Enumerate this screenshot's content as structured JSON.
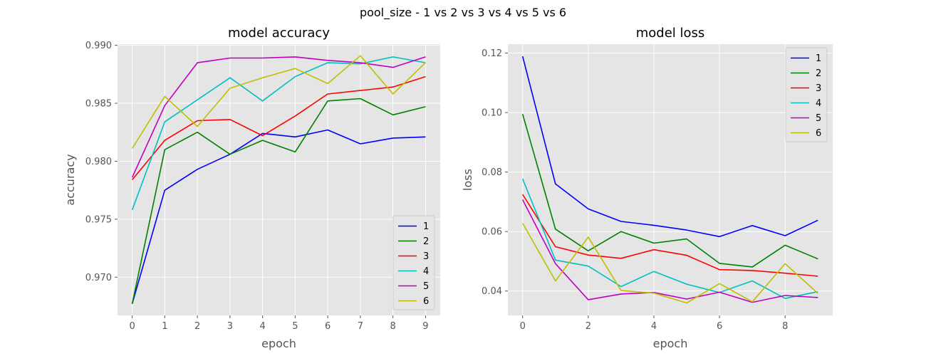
{
  "figure": {
    "suptitle": "pool_size - 1 vs 2 vs 3 vs 4 vs 5 vs 6"
  },
  "chart_data": [
    {
      "type": "line",
      "title": "model accuracy",
      "xlabel": "epoch",
      "ylabel": "accuracy",
      "x": [
        0,
        1,
        2,
        3,
        4,
        5,
        6,
        7,
        8,
        9
      ],
      "xlim": [
        -0.45,
        9.45
      ],
      "ylim": [
        0.9667,
        0.9901
      ],
      "xticks": [
        "0",
        "1",
        "2",
        "3",
        "4",
        "5",
        "6",
        "7",
        "8",
        "9"
      ],
      "yticks": [
        "0.970",
        "0.975",
        "0.980",
        "0.985",
        "0.990"
      ],
      "ytick_values": [
        0.97,
        0.975,
        0.98,
        0.985,
        0.99
      ],
      "grid": true,
      "legend_position": "lower right",
      "series": [
        {
          "name": "1",
          "color": "#0000ff",
          "values": [
            0.9677,
            0.9775,
            0.9793,
            0.9806,
            0.9824,
            0.9821,
            0.9827,
            0.9815,
            0.982,
            0.9821
          ]
        },
        {
          "name": "2",
          "color": "#008000",
          "values": [
            0.9677,
            0.981,
            0.9825,
            0.9806,
            0.9818,
            0.9808,
            0.9852,
            0.9854,
            0.984,
            0.9847
          ]
        },
        {
          "name": "3",
          "color": "#ff0000",
          "values": [
            0.9784,
            0.9818,
            0.9835,
            0.9836,
            0.9822,
            0.9839,
            0.9858,
            0.9861,
            0.9864,
            0.9873
          ]
        },
        {
          "name": "4",
          "color": "#00bfbf",
          "values": [
            0.9758,
            0.9834,
            0.9853,
            0.9872,
            0.9852,
            0.9873,
            0.9885,
            0.9884,
            0.989,
            0.9885
          ]
        },
        {
          "name": "5",
          "color": "#bf00bf",
          "values": [
            0.9786,
            0.9848,
            0.9885,
            0.9889,
            0.9889,
            0.989,
            0.9887,
            0.9885,
            0.9881,
            0.989
          ]
        },
        {
          "name": "6",
          "color": "#bfbf00",
          "values": [
            0.9811,
            0.9856,
            0.983,
            0.9863,
            0.9872,
            0.988,
            0.9867,
            0.9891,
            0.9858,
            0.9885
          ]
        }
      ]
    },
    {
      "type": "line",
      "title": "model loss",
      "xlabel": "epoch",
      "ylabel": "loss",
      "x": [
        0,
        1,
        2,
        3,
        4,
        5,
        6,
        7,
        8,
        9
      ],
      "xlim": [
        -0.45,
        9.45
      ],
      "ylim": [
        0.0318,
        0.123
      ],
      "xticks": [
        "0",
        "2",
        "4",
        "6",
        "8"
      ],
      "xtick_values": [
        0,
        2,
        4,
        6,
        8
      ],
      "yticks": [
        "0.04",
        "0.06",
        "0.08",
        "0.10",
        "0.12"
      ],
      "ytick_values": [
        0.04,
        0.06,
        0.08,
        0.1,
        0.12
      ],
      "grid": true,
      "legend_position": "upper right",
      "series": [
        {
          "name": "1",
          "color": "#0000ff",
          "values": [
            0.1189,
            0.076,
            0.0676,
            0.0634,
            0.0621,
            0.0605,
            0.0583,
            0.062,
            0.0586,
            0.0638
          ]
        },
        {
          "name": "2",
          "color": "#008000",
          "values": [
            0.0995,
            0.0608,
            0.0535,
            0.06,
            0.0561,
            0.0575,
            0.0493,
            0.0481,
            0.0554,
            0.0508
          ]
        },
        {
          "name": "3",
          "color": "#ff0000",
          "values": [
            0.0725,
            0.0549,
            0.0521,
            0.051,
            0.0539,
            0.052,
            0.0472,
            0.0469,
            0.046,
            0.045
          ]
        },
        {
          "name": "4",
          "color": "#00bfbf",
          "values": [
            0.0777,
            0.0504,
            0.0484,
            0.0415,
            0.0466,
            0.0423,
            0.0395,
            0.0434,
            0.0375,
            0.0398
          ]
        },
        {
          "name": "5",
          "color": "#bf00bf",
          "values": [
            0.0707,
            0.0492,
            0.0371,
            0.039,
            0.0395,
            0.0373,
            0.0396,
            0.0362,
            0.0385,
            0.0378
          ]
        },
        {
          "name": "6",
          "color": "#bfbf00",
          "values": [
            0.0628,
            0.0434,
            0.0581,
            0.0402,
            0.0393,
            0.036,
            0.0425,
            0.0364,
            0.0492,
            0.0392
          ]
        }
      ]
    }
  ]
}
